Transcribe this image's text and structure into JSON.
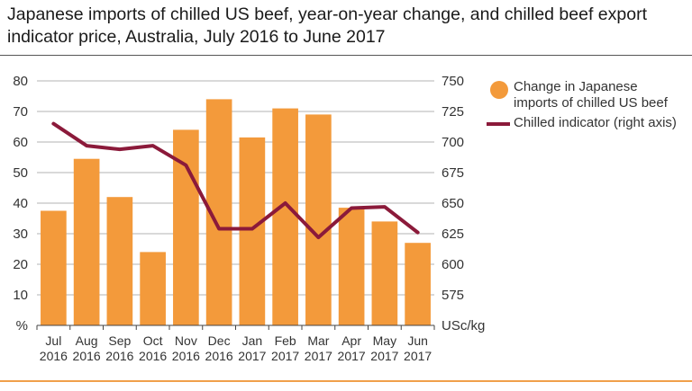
{
  "title": "Japanese imports of chilled US beef, year-on-year change, and chilled beef export indicator price, Australia, July 2016 to June 2017",
  "legend": {
    "bars_label": "Change in Japanese imports of chilled US beef",
    "line_label": "Chilled indicator (right axis)"
  },
  "colors": {
    "bars": "#f39a3b",
    "line": "#8b1a3a",
    "grid": "#9a9a9a"
  },
  "chart_data": {
    "type": "bar",
    "categories": [
      "Jul\n2016",
      "Aug\n2016",
      "Sep\n2016",
      "Oct\n2016",
      "Nov\n2016",
      "Dec\n2016",
      "Jan\n2017",
      "Feb\n2017",
      "Mar\n2017",
      "Apr\n2017",
      "May\n2017",
      "Jun\n2017"
    ],
    "left_axis": {
      "label": "%",
      "ylim": [
        0,
        80
      ],
      "ticks": [
        10,
        20,
        30,
        40,
        50,
        60,
        70,
        80
      ]
    },
    "right_axis": {
      "label": "USc/kg",
      "ylim": [
        550,
        750
      ],
      "ticks": [
        575,
        600,
        625,
        650,
        675,
        700,
        725,
        750
      ]
    },
    "series": [
      {
        "name": "Change in Japanese imports of chilled US beef",
        "type": "bar",
        "axis": "left",
        "values": [
          37.5,
          54.5,
          42,
          24,
          64,
          74,
          61.5,
          71,
          69,
          38.5,
          34,
          27
        ]
      },
      {
        "name": "Chilled indicator (right axis)",
        "type": "line",
        "axis": "right",
        "values": [
          715,
          697,
          694,
          697,
          681,
          629,
          629,
          650,
          622,
          646,
          647,
          626
        ]
      }
    ],
    "grid": true,
    "legend_position": "right"
  }
}
